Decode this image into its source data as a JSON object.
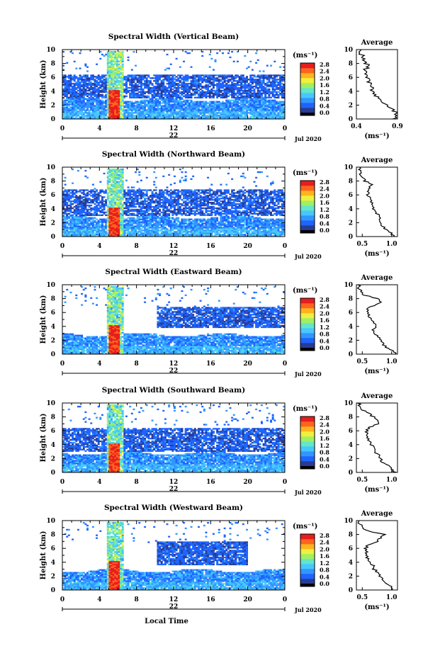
{
  "figure": {
    "xlabel": "Local Time",
    "x_ticks": [
      "0",
      "4",
      "8",
      "12",
      "16",
      "20",
      "0"
    ],
    "date_label": "Jul 2020",
    "y_ticks": [
      "0",
      "2",
      "4",
      "6",
      "8",
      "10"
    ],
    "ylabel": "Height (km)",
    "unit_label": "(ms⁻¹)",
    "average_title": "Average",
    "colorbar_ticks": [
      "0.0",
      "0.4",
      "0.8",
      "1.2",
      "1.6",
      "2.0",
      "2.4",
      "2.8"
    ],
    "colors": {
      "missing": "#ffffff",
      "scale": [
        "#283c96",
        "#1e64ff",
        "#3296ff",
        "#46c8ff",
        "#64e6c8",
        "#a0f064",
        "#f0f03c",
        "#ffb41e",
        "#ff641e",
        "#e61e1e"
      ]
    }
  },
  "panels": [
    {
      "title": "Spectral Width (Vertical Beam)",
      "day_label": "22",
      "avg_ticks": [
        "0.4",
        "0.9"
      ]
    },
    {
      "title": "Spectral Width (Northward Beam)",
      "day_label": "22",
      "avg_ticks": [
        "0.5",
        "1.0"
      ]
    },
    {
      "title": "Spectral Width (Eastward Beam)",
      "day_label": "22",
      "avg_ticks": [
        "0.5",
        "1.0"
      ]
    },
    {
      "title": "Spectral Width (Southward Beam)",
      "day_label": "22",
      "avg_ticks": [
        "0.5",
        "1.0"
      ]
    },
    {
      "title": "Spectral Width (Westward Beam)",
      "day_label": "22",
      "avg_ticks": [
        "0.5",
        "1.0"
      ]
    }
  ],
  "chart_data": [
    {
      "type": "heatmap",
      "title": "Spectral Width (Vertical Beam)",
      "x_unit": "Local Time",
      "xlim": [
        0,
        24
      ],
      "ylim": [
        0,
        10
      ],
      "ylabel": "Height (km)",
      "colorbar_range": [
        0.0,
        2.8
      ],
      "colorbar_unit": "ms-1",
      "regions": [
        {
          "x": [
            5.0,
            6.2
          ],
          "y": [
            0,
            4
          ],
          "value": 2.7
        },
        {
          "x": [
            4.8,
            6.6
          ],
          "y": [
            4,
            10
          ],
          "value": 1.3
        },
        {
          "x": [
            0,
            24
          ],
          "y": [
            0,
            2.5
          ],
          "value": 0.6
        },
        {
          "x": [
            0,
            24
          ],
          "y": [
            2.8,
            6.5
          ],
          "value": 0.45
        }
      ],
      "profile": {
        "type": "line",
        "title": "Average",
        "xlim": [
          0.4,
          0.9
        ],
        "ylim": [
          0,
          10
        ],
        "height": [
          0,
          0.5,
          1,
          1.5,
          2,
          2.5,
          3,
          3.5,
          4,
          4.5,
          5,
          5.5,
          6,
          6.5,
          7,
          7.5,
          8,
          8.5,
          9,
          9.5,
          10
        ],
        "width": [
          0.85,
          0.9,
          0.88,
          0.82,
          0.78,
          0.7,
          0.66,
          0.62,
          0.6,
          0.58,
          0.57,
          0.55,
          0.54,
          0.52,
          0.5,
          0.55,
          0.52,
          0.5,
          0.48,
          0.45,
          0.44
        ]
      }
    },
    {
      "type": "heatmap",
      "title": "Spectral Width (Northward Beam)",
      "x_unit": "Local Time",
      "xlim": [
        0,
        24
      ],
      "ylim": [
        0,
        10
      ],
      "ylabel": "Height (km)",
      "colorbar_range": [
        0.0,
        2.8
      ],
      "colorbar_unit": "ms-1",
      "regions": [
        {
          "x": [
            5.0,
            6.2
          ],
          "y": [
            0,
            4
          ],
          "value": 2.7
        },
        {
          "x": [
            4.8,
            6.6
          ],
          "y": [
            4,
            10
          ],
          "value": 1.3
        },
        {
          "x": [
            0,
            24
          ],
          "y": [
            0,
            3
          ],
          "value": 0.7
        },
        {
          "x": [
            0,
            24
          ],
          "y": [
            3,
            7
          ],
          "value": 0.45
        }
      ],
      "profile": {
        "type": "line",
        "title": "Average",
        "xlim": [
          0.4,
          1.1
        ],
        "ylim": [
          0,
          10
        ],
        "height": [
          0,
          0.5,
          1,
          1.5,
          2,
          2.5,
          3,
          3.5,
          4,
          4.5,
          5,
          5.5,
          6,
          6.5,
          7,
          7.5,
          8,
          8.5,
          9,
          9.5,
          10
        ],
        "width": [
          1.05,
          1.0,
          0.9,
          0.85,
          0.82,
          0.8,
          0.78,
          0.72,
          0.7,
          0.68,
          0.66,
          0.62,
          0.6,
          0.58,
          0.62,
          0.65,
          0.55,
          0.5,
          0.47,
          0.45,
          0.44
        ]
      }
    },
    {
      "type": "heatmap",
      "title": "Spectral Width (Eastward Beam)",
      "x_unit": "Local Time",
      "xlim": [
        0,
        24
      ],
      "ylim": [
        0,
        10
      ],
      "ylabel": "Height (km)",
      "colorbar_range": [
        0.0,
        2.8
      ],
      "colorbar_unit": "ms-1",
      "regions": [
        {
          "x": [
            5.0,
            6.2
          ],
          "y": [
            0,
            4
          ],
          "value": 2.7
        },
        {
          "x": [
            4.8,
            6.6
          ],
          "y": [
            4,
            10
          ],
          "value": 1.3
        },
        {
          "x": [
            0,
            24
          ],
          "y": [
            0,
            3.2
          ],
          "value": 0.7
        },
        {
          "x": [
            10,
            24
          ],
          "y": [
            4,
            7
          ],
          "value": 0.45
        }
      ],
      "profile": {
        "type": "line",
        "title": "Average",
        "xlim": [
          0.4,
          1.1
        ],
        "ylim": [
          0,
          10
        ],
        "height": [
          0,
          0.5,
          1,
          1.5,
          2,
          2.5,
          3,
          3.5,
          4,
          4.5,
          5,
          5.5,
          6,
          6.5,
          7,
          7.5,
          8,
          8.5,
          9,
          9.5,
          10
        ],
        "width": [
          1.08,
          1.0,
          0.92,
          0.85,
          0.8,
          0.78,
          0.7,
          0.68,
          0.75,
          0.7,
          0.65,
          0.62,
          0.6,
          0.58,
          0.7,
          0.85,
          0.75,
          0.55,
          0.48,
          0.45,
          0.44
        ]
      }
    },
    {
      "type": "heatmap",
      "title": "Spectral Width (Southward Beam)",
      "x_unit": "Local Time",
      "xlim": [
        0,
        24
      ],
      "ylim": [
        0,
        10
      ],
      "ylabel": "Height (km)",
      "colorbar_range": [
        0.0,
        2.8
      ],
      "colorbar_unit": "ms-1",
      "regions": [
        {
          "x": [
            5.0,
            6.2
          ],
          "y": [
            0,
            4
          ],
          "value": 2.7
        },
        {
          "x": [
            4.8,
            6.6
          ],
          "y": [
            4,
            10
          ],
          "value": 1.3
        },
        {
          "x": [
            0,
            24
          ],
          "y": [
            0,
            3
          ],
          "value": 0.7
        },
        {
          "x": [
            0,
            24
          ],
          "y": [
            3.5,
            6.5
          ],
          "value": 0.45
        }
      ],
      "profile": {
        "type": "line",
        "title": "Average",
        "xlim": [
          0.4,
          1.1
        ],
        "ylim": [
          0,
          10
        ],
        "height": [
          0,
          0.5,
          1,
          1.5,
          2,
          2.5,
          3,
          3.5,
          4,
          4.5,
          5,
          5.5,
          6,
          6.5,
          7,
          7.5,
          8,
          8.5,
          9,
          9.5,
          10
        ],
        "width": [
          1.05,
          1.0,
          0.95,
          0.85,
          0.8,
          0.78,
          0.72,
          0.7,
          0.65,
          0.62,
          0.6,
          0.58,
          0.57,
          0.62,
          0.75,
          0.78,
          0.7,
          0.6,
          0.5,
          0.46,
          0.44
        ]
      }
    },
    {
      "type": "heatmap",
      "title": "Spectral Width (Westward Beam)",
      "x_unit": "Local Time",
      "xlim": [
        0,
        24
      ],
      "ylim": [
        0,
        10
      ],
      "ylabel": "Height (km)",
      "colorbar_range": [
        0.0,
        2.8
      ],
      "colorbar_unit": "ms-1",
      "regions": [
        {
          "x": [
            5.0,
            6.2
          ],
          "y": [
            0,
            4
          ],
          "value": 2.7
        },
        {
          "x": [
            4.8,
            6.6
          ],
          "y": [
            4,
            10
          ],
          "value": 1.3
        },
        {
          "x": [
            0,
            24
          ],
          "y": [
            0,
            3
          ],
          "value": 0.7
        },
        {
          "x": [
            10,
            20
          ],
          "y": [
            3.5,
            6.8
          ],
          "value": 0.45
        }
      ],
      "profile": {
        "type": "line",
        "title": "Average",
        "xlim": [
          0.4,
          1.1
        ],
        "ylim": [
          0,
          10
        ],
        "height": [
          0,
          0.5,
          1,
          1.5,
          2,
          2.5,
          3,
          3.5,
          4,
          4.5,
          5,
          5.5,
          6,
          6.5,
          7,
          7.5,
          8,
          8.5,
          9,
          9.5,
          10
        ],
        "width": [
          1.0,
          0.98,
          0.92,
          0.85,
          0.8,
          0.78,
          0.7,
          0.68,
          0.62,
          0.6,
          0.58,
          0.57,
          0.56,
          0.6,
          0.75,
          0.8,
          0.9,
          0.6,
          0.5,
          0.46,
          0.44
        ]
      }
    }
  ]
}
